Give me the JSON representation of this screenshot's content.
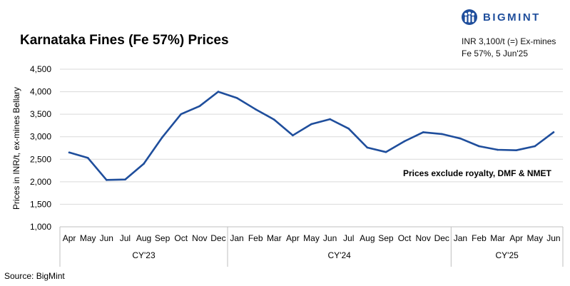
{
  "header": {
    "title": "Karnataka Fines (Fe 57%) Prices",
    "brand": "BIGMINT",
    "note_line1": "INR 3,100/t (=) Ex-mines",
    "note_line2": "Fe 57%, 5 Jun'25"
  },
  "footer": {
    "source": "Source: BigMint"
  },
  "colors": {
    "line": "#1f4e9c",
    "grid": "#d9d9d9",
    "axis": "#bfbfbf",
    "brand": "#1f4e9c"
  },
  "chart_data": {
    "type": "line",
    "title": "Karnataka Fines (Fe 57%) Prices",
    "ylabel": "Prices in INR/t, ex-mines Bellary",
    "xlabel": "",
    "ylim": [
      1000,
      4500
    ],
    "yticks": [
      "1,000",
      "1,500",
      "2,000",
      "2,500",
      "3,000",
      "3,500",
      "4,000",
      "4,500"
    ],
    "ytick_values": [
      1000,
      1500,
      2000,
      2500,
      3000,
      3500,
      4000,
      4500
    ],
    "grid": true,
    "legend": "none",
    "annotation": "Prices exclude royalty, DMF & NMET",
    "categories": [
      "Apr",
      "May",
      "Jun",
      "Jul",
      "Aug",
      "Sep",
      "Oct",
      "Nov",
      "Dec",
      "Jan",
      "Feb",
      "Mar",
      "Apr",
      "May",
      "Jun",
      "Jul",
      "Aug",
      "Sep",
      "Oct",
      "Nov",
      "Dec",
      "Jan",
      "Feb",
      "Mar",
      "Apr",
      "May",
      "Jun"
    ],
    "groups": [
      {
        "label": "CY'23",
        "start": 0,
        "end": 8
      },
      {
        "label": "CY'24",
        "start": 9,
        "end": 20
      },
      {
        "label": "CY'25",
        "start": 21,
        "end": 26
      }
    ],
    "series": [
      {
        "values": [
          2650,
          2530,
          2040,
          2050,
          2400,
          2990,
          3500,
          3680,
          4000,
          3860,
          3610,
          3380,
          3030,
          3280,
          3390,
          3180,
          2760,
          2660,
          2900,
          3100,
          3060,
          2960,
          2790,
          2710,
          2700,
          2790,
          3100
        ]
      }
    ]
  }
}
